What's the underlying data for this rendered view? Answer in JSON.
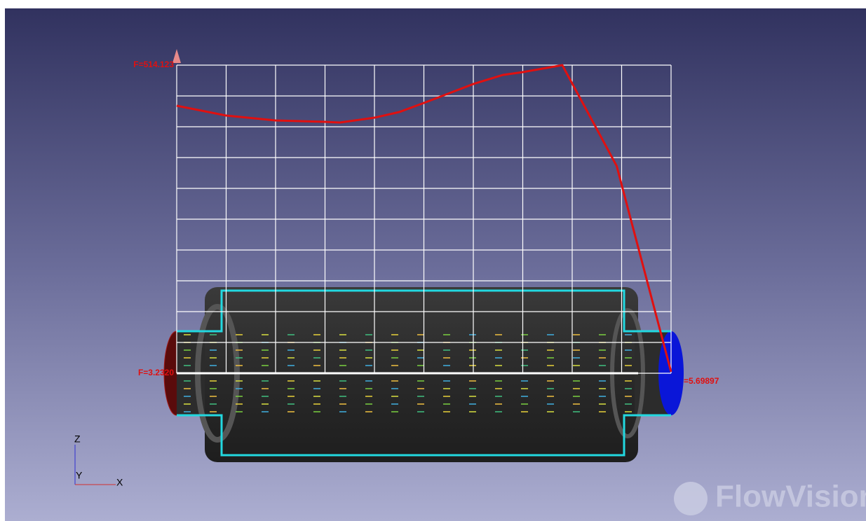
{
  "viewport": {
    "axis_labels": {
      "z": "Z",
      "y": "Y",
      "x": "X"
    },
    "watermark": "FlowVision",
    "plot": {
      "x": [
        0,
        1,
        2,
        3,
        3.3,
        4,
        4.5,
        5,
        6,
        6.6,
        7,
        7.8,
        8.9,
        10
      ],
      "values": [
        446.8,
        430.5,
        422.4,
        420.1,
        418.9,
        427.0,
        436.3,
        451.4,
        482.8,
        497.9,
        502.5,
        514.123,
        346.9,
        5.69897
      ],
      "value_labels": [
        null,
        null,
        null,
        null,
        null,
        null,
        null,
        null,
        null,
        null,
        null,
        null,
        null,
        "=5.69897"
      ],
      "color": "#e01010",
      "xlim": [
        0,
        10
      ],
      "ylim": [
        3.232,
        514.123
      ],
      "yticks": [
        {
          "value": 3.232,
          "label": "F=3.2320"
        },
        {
          "value": 514.123,
          "label": "F=514.123"
        }
      ]
    }
  }
}
